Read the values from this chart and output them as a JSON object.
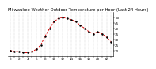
{
  "title": "Milwaukee Weather Outdoor Temperature per Hour (Last 24 Hours)",
  "hours": [
    0,
    1,
    2,
    3,
    4,
    5,
    6,
    7,
    8,
    9,
    10,
    11,
    12,
    13,
    14,
    15,
    16,
    17,
    18,
    19,
    20,
    21,
    22,
    23
  ],
  "temps": [
    20,
    19,
    19,
    18,
    18,
    19,
    21,
    25,
    33,
    40,
    46,
    49,
    50,
    49,
    48,
    46,
    43,
    40,
    37,
    35,
    37,
    35,
    32,
    28
  ],
  "line_color": "#dd0000",
  "marker_color": "#000000",
  "bg_color": "#ffffff",
  "grid_color": "#888888",
  "ylim": [
    15,
    55
  ],
  "ytick_values": [
    20,
    25,
    30,
    35,
    40,
    45,
    50
  ],
  "ytick_labels": [
    "20",
    "25",
    "30",
    "35",
    "40",
    "45",
    "50"
  ],
  "title_fontsize": 3.8,
  "tick_fontsize": 3.0,
  "linewidth": 0.7,
  "markersize": 1.3
}
